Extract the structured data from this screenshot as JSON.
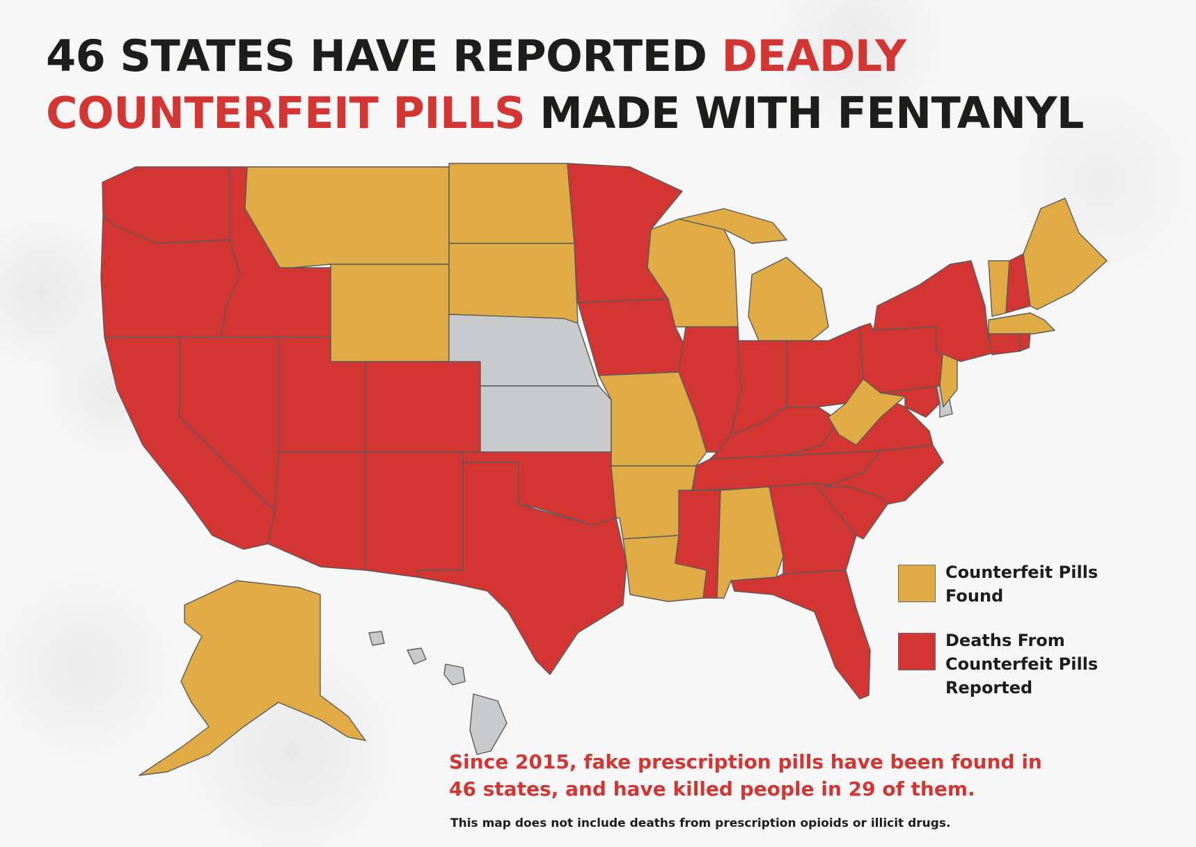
{
  "title": {
    "part1": "46 STATES HAVE REPORTED ",
    "part2": "DEADLY",
    "part3": "COUNTERFEIT PILLS",
    "part4": " MADE WITH FENTANYL"
  },
  "colors": {
    "found": "#e0ab45",
    "deaths": "#d33632",
    "none": "#c9cacc",
    "border": "#5a5a5a",
    "text_dark": "#1d1d1b"
  },
  "legend": {
    "found_line1": "Counterfeit Pills",
    "found_line2": "Found",
    "deaths_line1": "Deaths From",
    "deaths_line2": "Counterfeit Pills",
    "deaths_line3": "Reported"
  },
  "note": {
    "line1": "Since 2015, fake prescription pills have been found in",
    "line2": "46 states, and have killed people in 29 of them."
  },
  "disclaimer": "This map does not include deaths from prescription opioids or illicit drugs."
}
